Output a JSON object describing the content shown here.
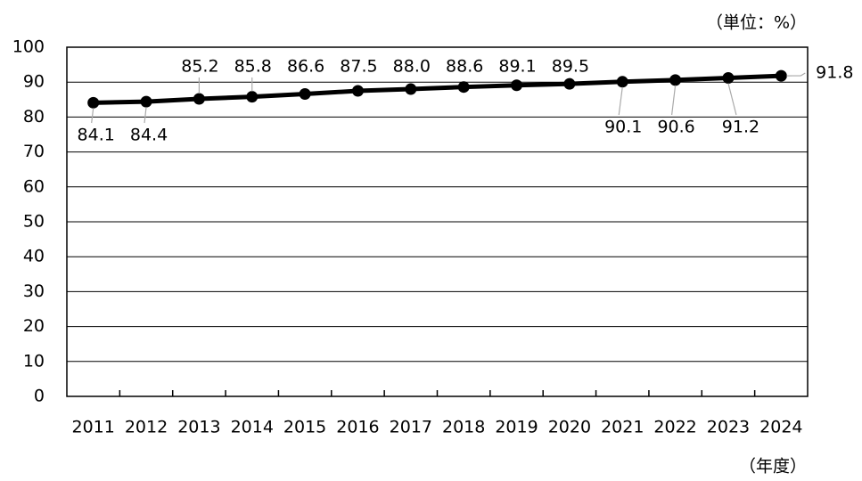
{
  "chart_data": {
    "type": "line",
    "unit_label": "（単位：%）",
    "x_unit_label": "（年度）",
    "categories": [
      "2011",
      "2012",
      "2013",
      "2014",
      "2015",
      "2016",
      "2017",
      "2018",
      "2019",
      "2020",
      "2021",
      "2022",
      "2023",
      "2024"
    ],
    "values": [
      84.1,
      84.4,
      85.2,
      85.8,
      86.6,
      87.5,
      88.0,
      88.6,
      89.1,
      89.5,
      90.1,
      90.6,
      91.2,
      91.8
    ],
    "value_labels": [
      "84.1",
      "84.4",
      "85.2",
      "85.8",
      "86.6",
      "87.5",
      "88.0",
      "88.6",
      "89.1",
      "89.5",
      "90.1",
      "90.6",
      "91.2",
      "91.8"
    ],
    "color": "#000000",
    "ylim": [
      0,
      100
    ],
    "yticks": [
      0,
      10,
      20,
      30,
      40,
      50,
      60,
      70,
      80,
      90,
      100
    ],
    "grid": true
  }
}
